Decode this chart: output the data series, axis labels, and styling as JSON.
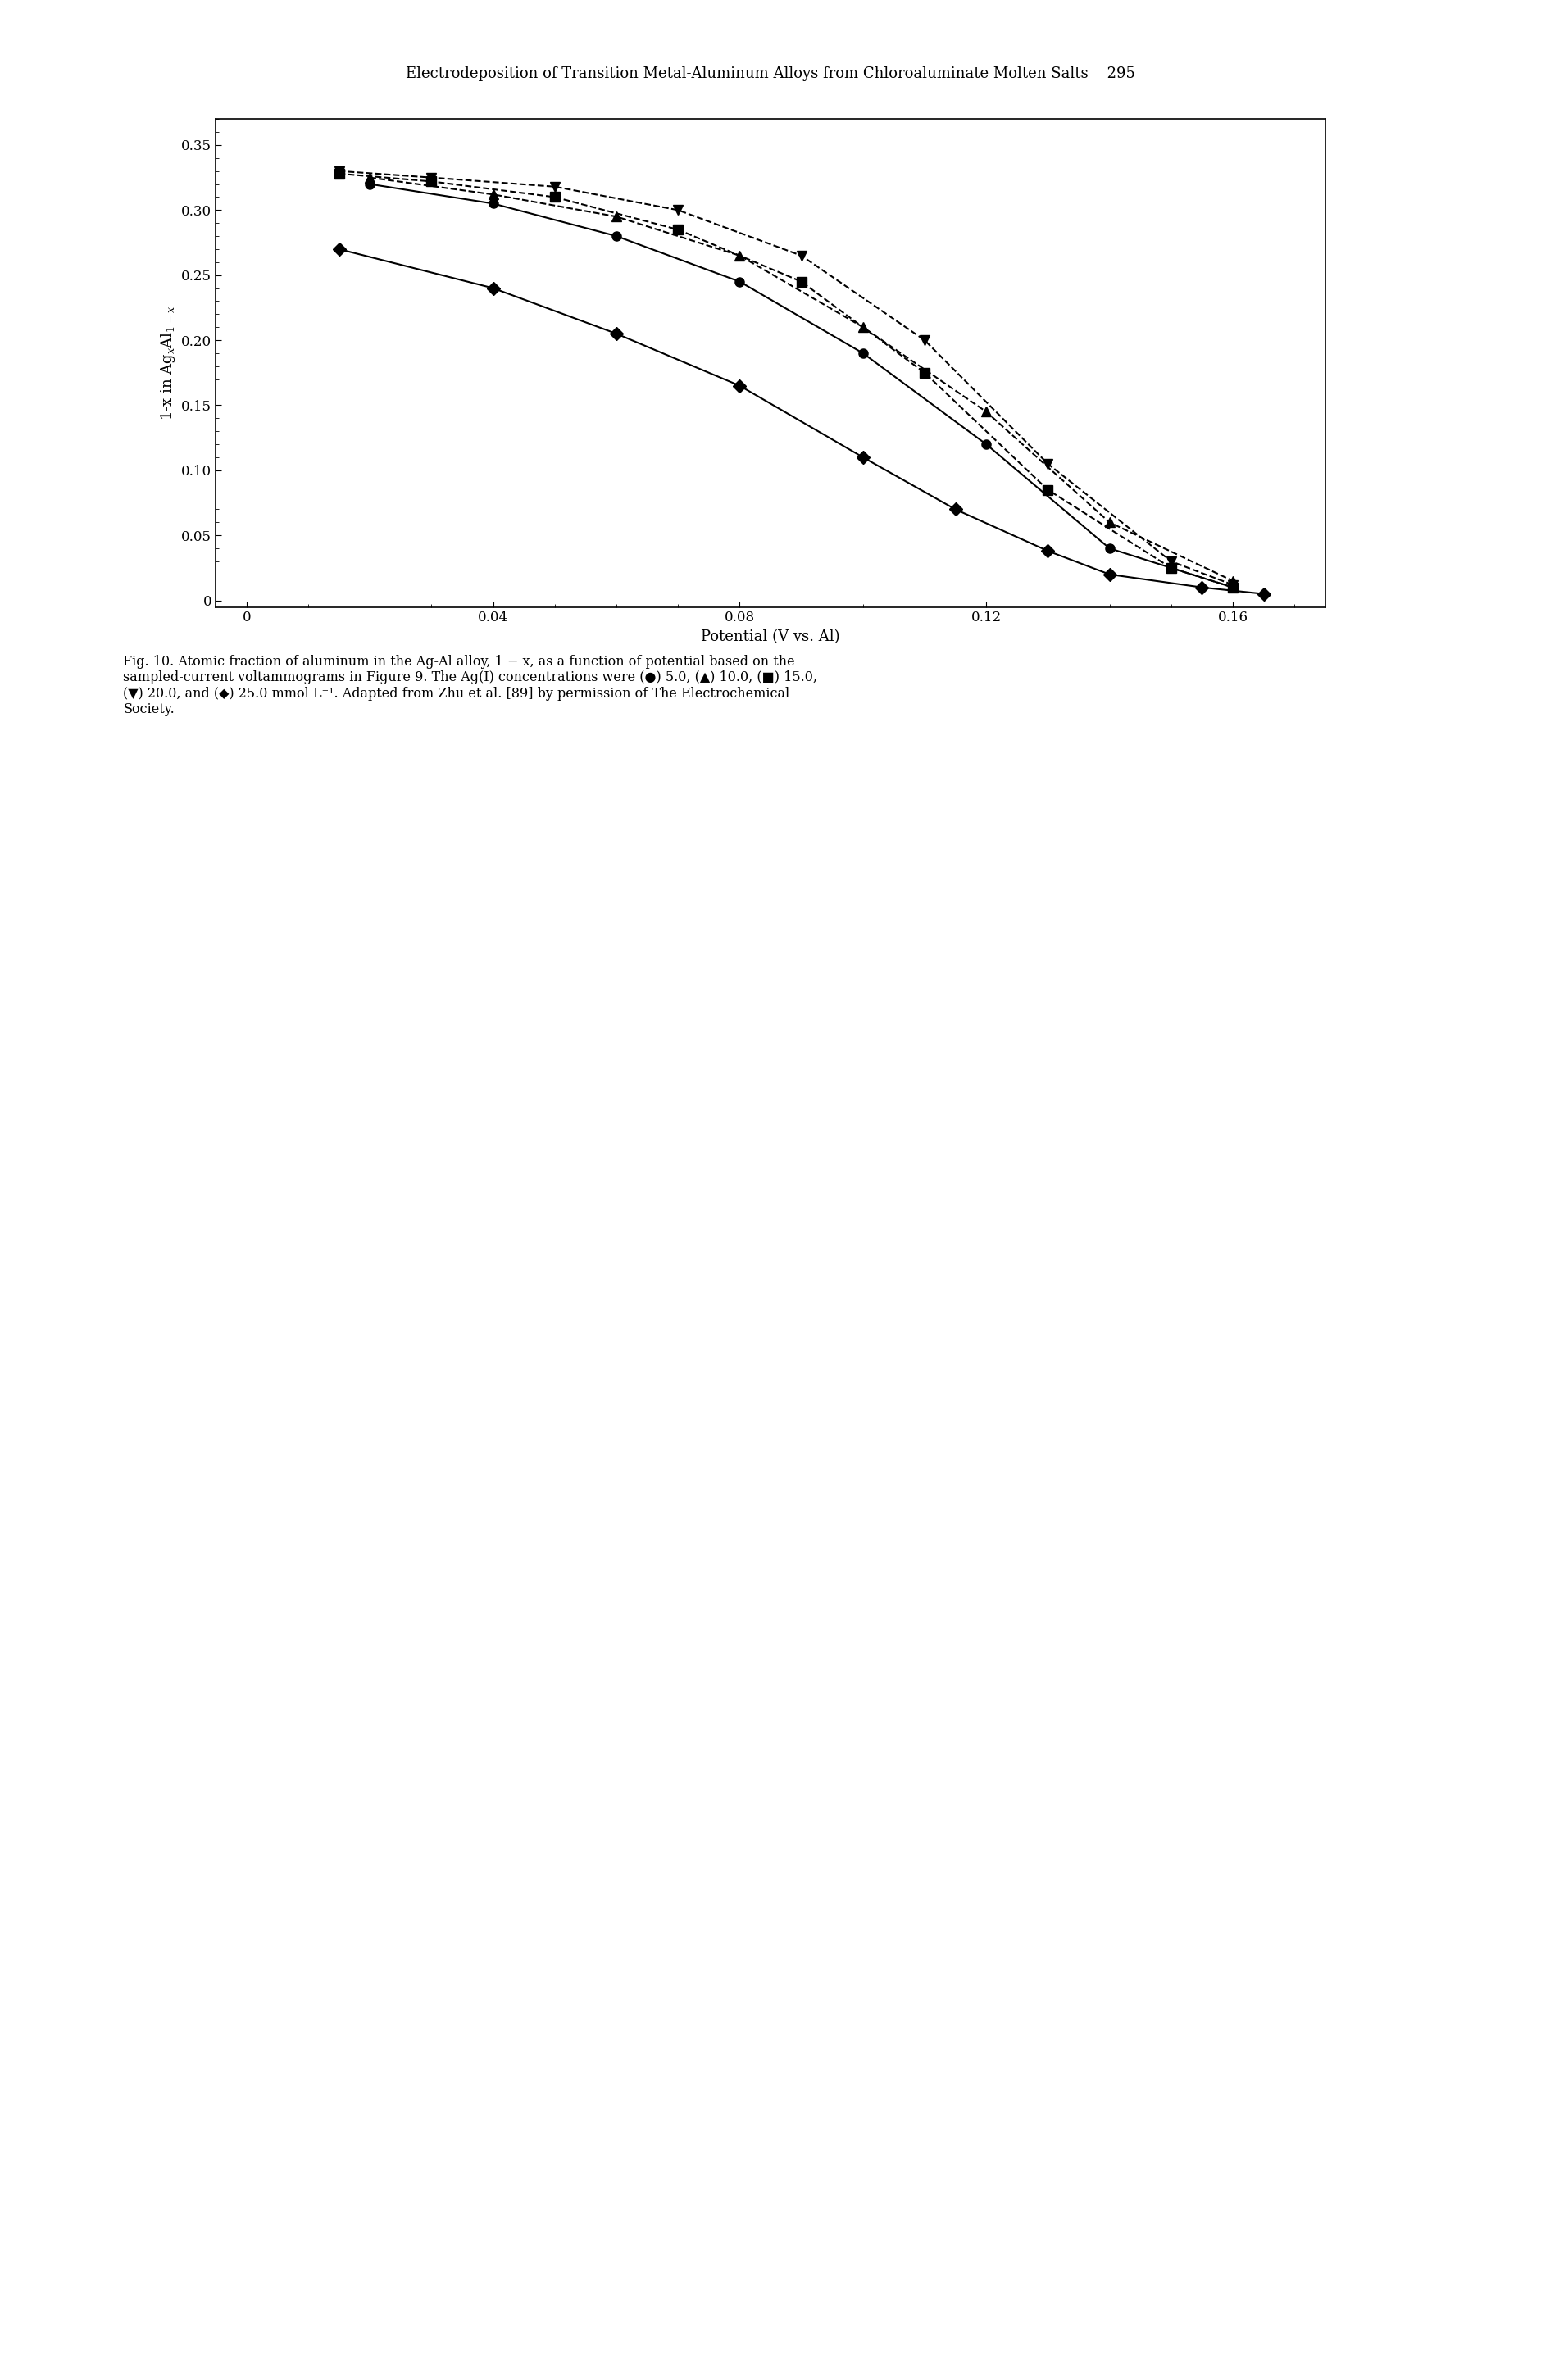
{
  "title_header": "Electrodeposition of Transition Metal-Aluminum Alloys from Chloroaluminate Molten Salts    295",
  "xlabel": "Potential (V vs. Al)",
  "ylabel": "1-x in AgₓAl₁₋ₓ",
  "xlim": [
    -0.005,
    0.175
  ],
  "ylim": [
    -0.005,
    0.37
  ],
  "xticks": [
    0,
    0.04,
    0.08,
    0.12,
    0.16
  ],
  "yticks": [
    0,
    0.05,
    0.1,
    0.15,
    0.2,
    0.25,
    0.3,
    0.35
  ],
  "caption": "Fig. 10. Atomic fraction of aluminum in the Ag-Al alloy, 1 − x, as a function of potential based on the\nsampled-current voltammograms in Figure 9. The Ag(I) concentrations were (●) 5.0, (▲) 10.0, (■) 15.0,\n(▼) 20.0, and (◆) 25.0 mmol L⁻¹. Adapted from Zhu et al. [89] by permission of The Electrochemical\nSociety.",
  "series": [
    {
      "label": "5.0 mmol",
      "marker": "o",
      "linestyle": "-",
      "color": "black",
      "markersize": 8,
      "linewidth": 1.5,
      "x": [
        0.02,
        0.04,
        0.06,
        0.08,
        0.1,
        0.12,
        0.14,
        0.16
      ],
      "y": [
        0.32,
        0.305,
        0.28,
        0.245,
        0.19,
        0.12,
        0.04,
        0.01
      ]
    },
    {
      "label": "10.0 mmol",
      "marker": "^",
      "linestyle": "--",
      "color": "black",
      "markersize": 8,
      "linewidth": 1.5,
      "x": [
        0.02,
        0.04,
        0.06,
        0.08,
        0.1,
        0.12,
        0.14,
        0.16
      ],
      "y": [
        0.325,
        0.312,
        0.295,
        0.265,
        0.21,
        0.145,
        0.06,
        0.015
      ]
    },
    {
      "label": "15.0 mmol",
      "marker": "s",
      "linestyle": "--",
      "color": "black",
      "markersize": 8,
      "linewidth": 1.5,
      "x": [
        0.015,
        0.03,
        0.05,
        0.07,
        0.09,
        0.11,
        0.13,
        0.15,
        0.16
      ],
      "y": [
        0.328,
        0.322,
        0.31,
        0.285,
        0.245,
        0.175,
        0.085,
        0.025,
        0.01
      ]
    },
    {
      "label": "20.0 mmol",
      "marker": "v",
      "linestyle": "--",
      "color": "black",
      "markersize": 8,
      "linewidth": 1.5,
      "x": [
        0.015,
        0.03,
        0.05,
        0.07,
        0.09,
        0.11,
        0.13,
        0.15,
        0.16
      ],
      "y": [
        0.33,
        0.325,
        0.318,
        0.3,
        0.265,
        0.2,
        0.105,
        0.03,
        0.012
      ]
    },
    {
      "label": "25.0 mmol",
      "marker": "D",
      "linestyle": "-",
      "color": "black",
      "markersize": 8,
      "linewidth": 1.5,
      "x": [
        0.015,
        0.04,
        0.06,
        0.08,
        0.1,
        0.115,
        0.13,
        0.14,
        0.155,
        0.165
      ],
      "y": [
        0.27,
        0.24,
        0.205,
        0.165,
        0.11,
        0.07,
        0.038,
        0.02,
        0.01,
        0.005
      ]
    }
  ],
  "background_color": "#ffffff",
  "axis_color": "#000000",
  "font_family": "serif"
}
